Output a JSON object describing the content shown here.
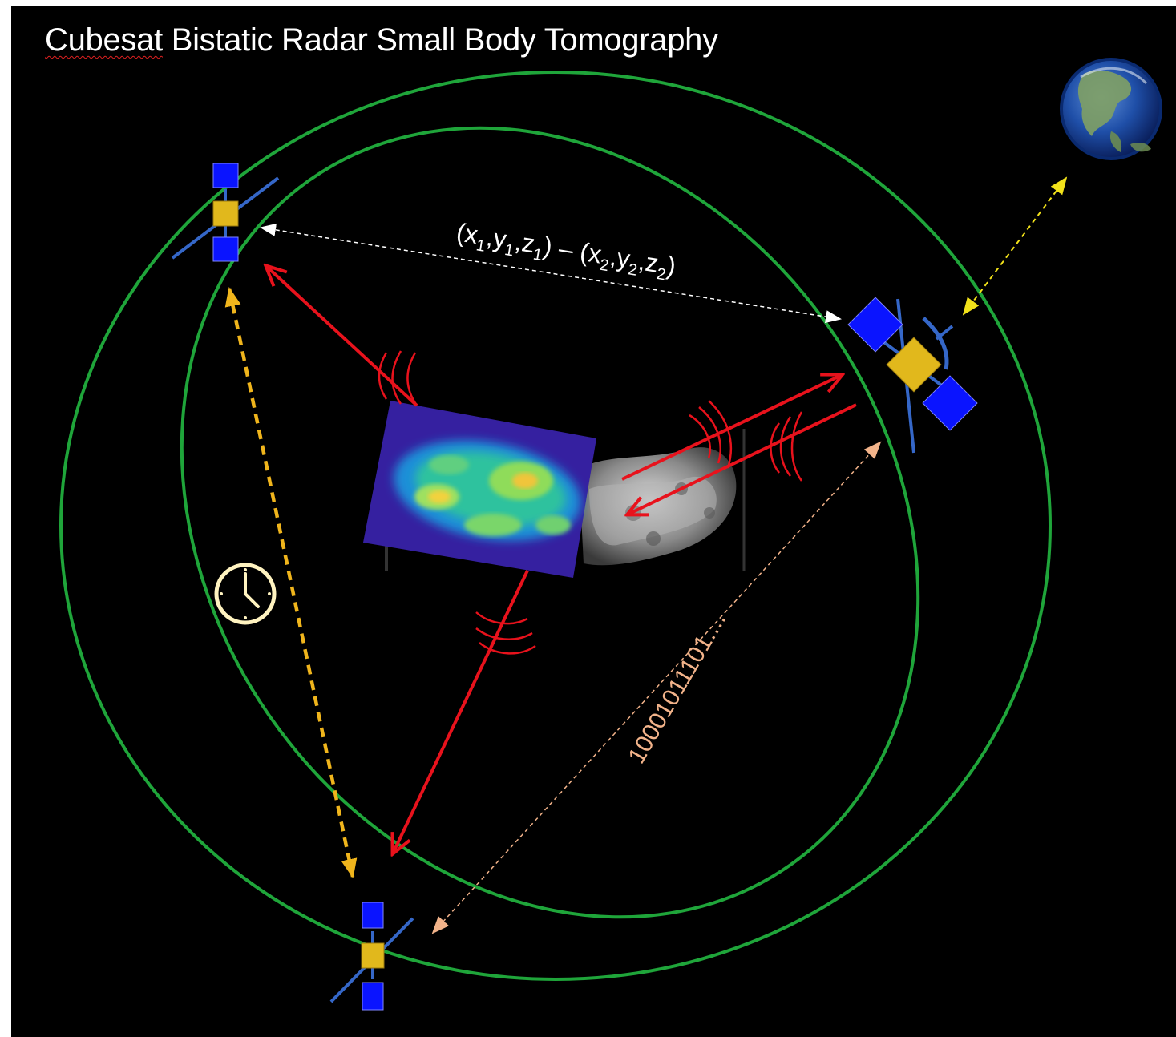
{
  "title": {
    "misspelled_word": "Cubesat",
    "rest": " Bistatic Radar Small Body Tomography"
  },
  "labels": {
    "position_difference": {
      "p1": {
        "open": "(",
        "x": "x",
        "x_sub": "1",
        "y": "y",
        "y_sub": "1",
        "z": "z",
        "z_sub": "1",
        "close": ")"
      },
      "minus": "–",
      "p2": {
        "open": "(",
        "x": "x",
        "x_sub": "2",
        "y": "y",
        "y_sub": "2",
        "z": "z",
        "z_sub": "2",
        "close": ")"
      }
    },
    "data_stream": "10001011101...."
  },
  "colors": {
    "background": "#000000",
    "orbit": "#1fa53a",
    "radar_signal": "#e8121c",
    "ranging_link": "#ffffff",
    "clock_sync_link": "#f0b51c",
    "earth_link": "#f2e21a",
    "data_link": "#f2b38a",
    "clock": "#fff3c0",
    "solar_panel": "#0a14ff",
    "bus": "#e1b81c",
    "antenna": "#3567c8"
  },
  "icons": {
    "earth": "earth-globe-icon",
    "clock": "clock-icon",
    "satellite": "cubesat-icon"
  }
}
